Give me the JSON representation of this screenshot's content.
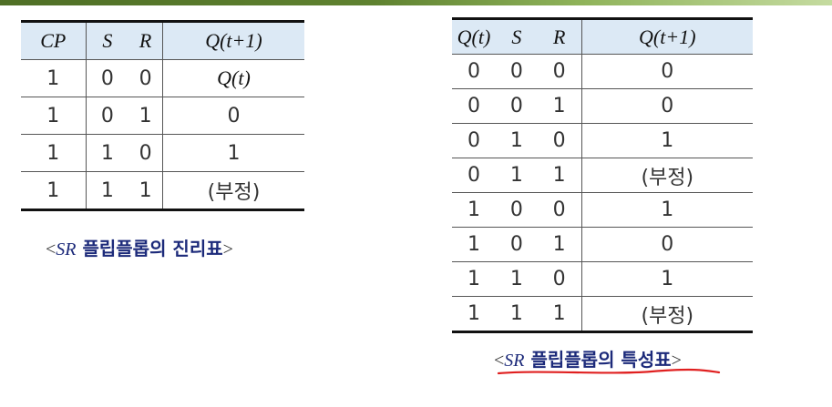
{
  "left_table": {
    "headers": [
      "CP",
      "S",
      "R",
      "Q(t+1)"
    ],
    "rows": [
      [
        "1",
        "0",
        "0",
        "Q(t)"
      ],
      [
        "1",
        "0",
        "1",
        "0"
      ],
      [
        "1",
        "1",
        "0",
        "1"
      ],
      [
        "1",
        "1",
        "1",
        "(부정)"
      ]
    ],
    "caption": {
      "open": "<",
      "symbol": "SR",
      "text": " 플립플롭의 진리표",
      "close": ">"
    }
  },
  "right_table": {
    "headers": [
      "Q(t)",
      "S",
      "R",
      "Q(t+1)"
    ],
    "rows": [
      [
        "0",
        "0",
        "0",
        "0"
      ],
      [
        "0",
        "0",
        "1",
        "0"
      ],
      [
        "0",
        "1",
        "0",
        "1"
      ],
      [
        "0",
        "1",
        "1",
        "(부정)"
      ],
      [
        "1",
        "0",
        "0",
        "1"
      ],
      [
        "1",
        "0",
        "1",
        "0"
      ],
      [
        "1",
        "1",
        "0",
        "1"
      ],
      [
        "1",
        "1",
        "1",
        "(부정)"
      ]
    ],
    "caption": {
      "open": "<",
      "symbol": "SR",
      "text": " 플립플롭의 특성표",
      "close": ">"
    }
  },
  "colors": {
    "header_fill": "#dce9f5",
    "caption_text": "#1c2a7a",
    "annotation_underline": "#e02020",
    "top_bar": "#5f8230"
  }
}
